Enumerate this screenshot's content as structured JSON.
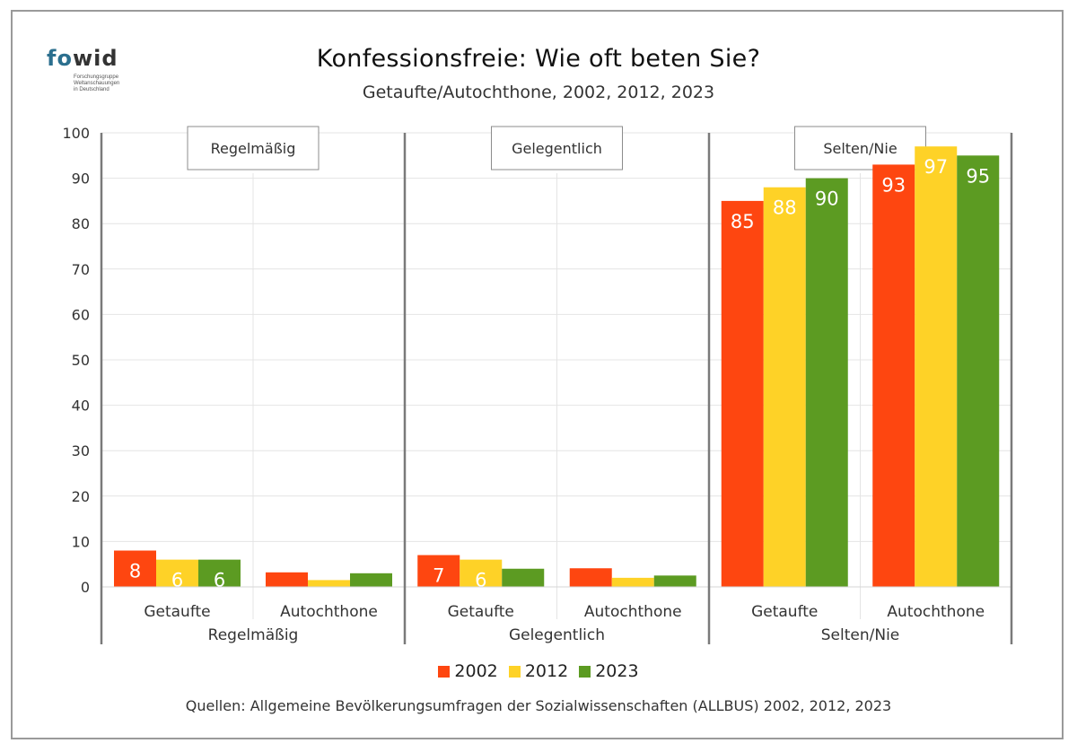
{
  "logo": {
    "fo": "fo",
    "wid": "wid",
    "lines": [
      "Forschungsgruppe",
      "Weltanschauungen",
      "in Deutschland"
    ]
  },
  "colors": {
    "2002": "#fe4610",
    "2012": "#fed227",
    "2023": "#5c9b22"
  },
  "chart_data": {
    "type": "bar",
    "title": "Konfessionsfreie: Wie oft beten Sie?",
    "subtitle": "Getaufte/Autochthone, 2002, 2012, 2023",
    "ylim": [
      0,
      100
    ],
    "yticks": [
      0,
      10,
      20,
      30,
      40,
      50,
      60,
      70,
      80,
      90,
      100
    ],
    "grid": true,
    "legend_position": "bottom",
    "series_names": [
      "2002",
      "2012",
      "2023"
    ],
    "panels": [
      {
        "label": "Regelmäßig",
        "groups": [
          {
            "label": "Getaufte",
            "values": [
              8,
              6,
              6
            ],
            "data_labels": [
              "8",
              "6",
              "6"
            ]
          },
          {
            "label": "Autochthone",
            "values": [
              3.2,
              1.5,
              3
            ],
            "data_labels": [
              "",
              "",
              ""
            ]
          }
        ]
      },
      {
        "label": "Gelegentlich",
        "groups": [
          {
            "label": "Getaufte",
            "values": [
              7,
              6,
              4
            ],
            "data_labels": [
              "7",
              "6",
              ""
            ]
          },
          {
            "label": "Autochthone",
            "values": [
              4.1,
              2,
              2.5
            ],
            "data_labels": [
              "",
              "",
              ""
            ]
          }
        ]
      },
      {
        "label": "Selten/Nie",
        "groups": [
          {
            "label": "Getaufte",
            "values": [
              85,
              88,
              90
            ],
            "data_labels": [
              "85",
              "88",
              "90"
            ]
          },
          {
            "label": "Autochthone",
            "values": [
              93,
              97,
              95
            ],
            "data_labels": [
              "93",
              "97",
              "95"
            ]
          }
        ]
      }
    ]
  },
  "legend": [
    {
      "label": "2002",
      "color": "#fe4610"
    },
    {
      "label": "2012",
      "color": "#fed227"
    },
    {
      "label": "2023",
      "color": "#5c9b22"
    }
  ],
  "source": "Quellen: Allgemeine Bevölkerungsumfragen der Sozialwissenschaften (ALLBUS) 2002, 2012, 2023"
}
